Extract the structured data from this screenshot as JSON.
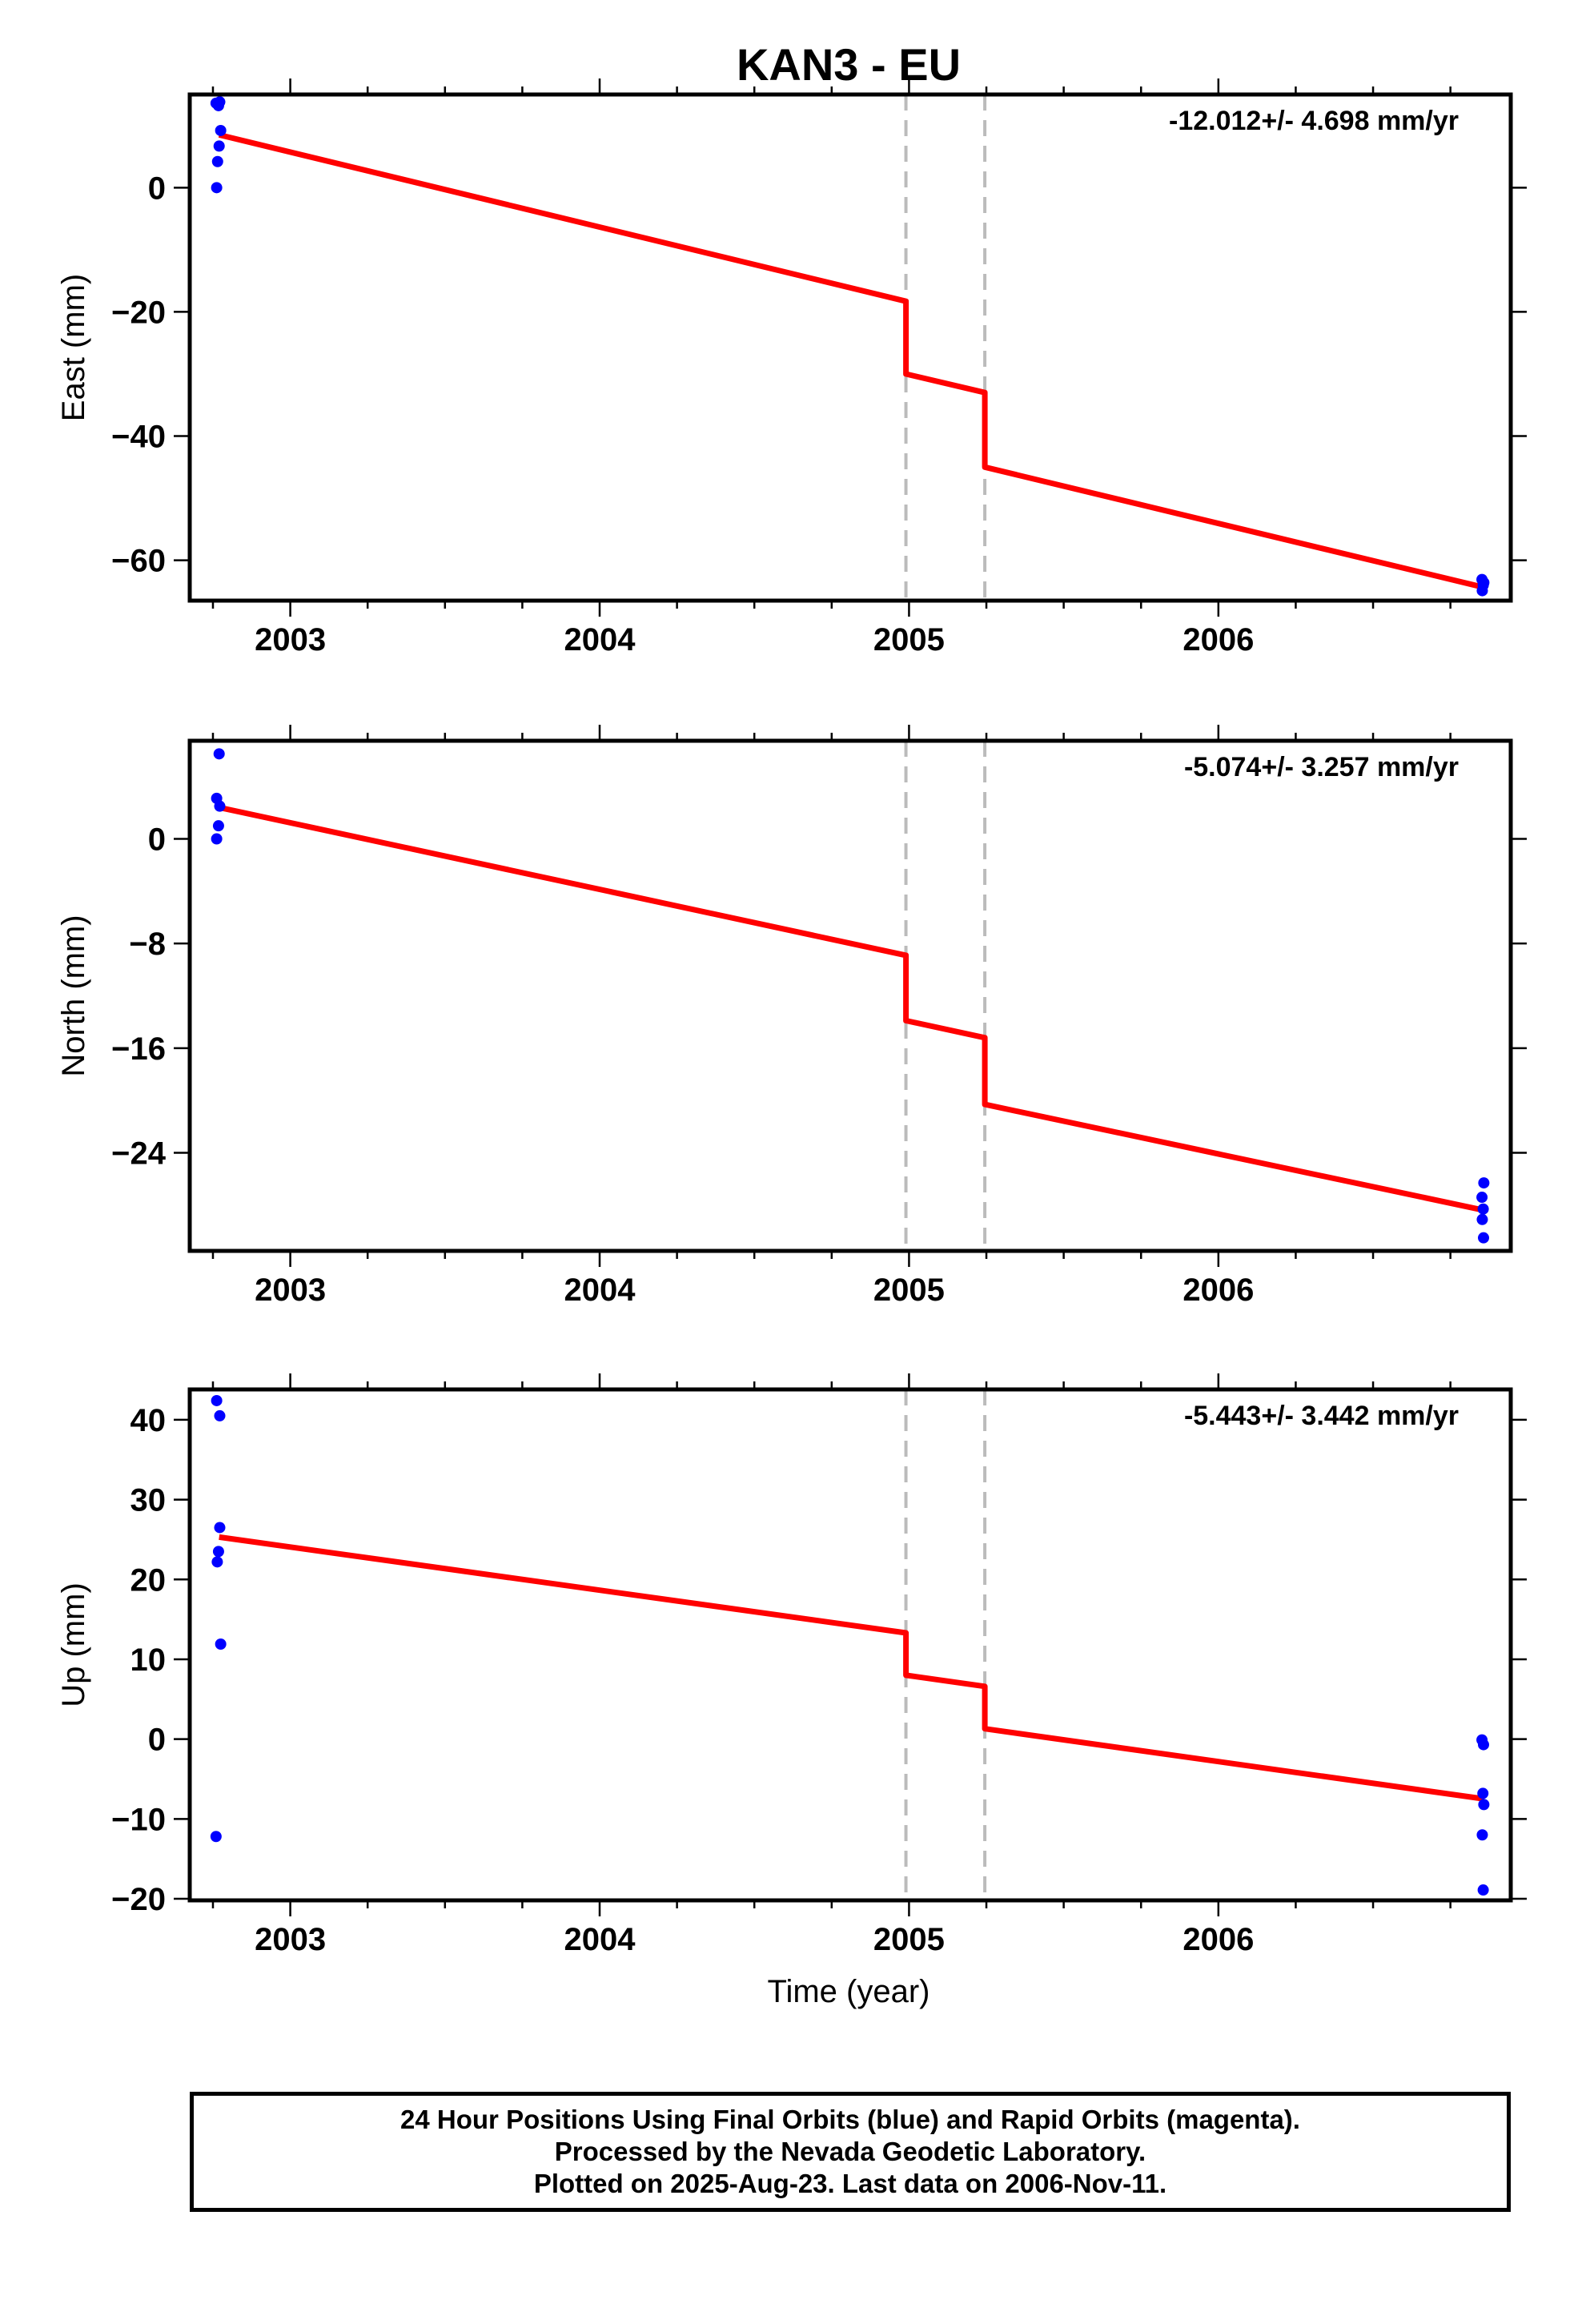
{
  "title": "KAN3 - EU",
  "xlabel": "Time (year)",
  "caption": [
    "24 Hour Positions Using Final Orbits (blue) and Rapid Orbits (magenta).",
    "Processed by the Nevada Geodetic Laboratory.",
    "Plotted on 2025-Aug-23. Last data on 2006-Nov-11."
  ],
  "colors": {
    "final_orbits": "#0000ff",
    "model": "#ff0000",
    "event_lines": "#bbbbbb"
  },
  "chart_data": [
    {
      "type": "scatter",
      "component": "East",
      "ylabel": "East (mm)",
      "rate": "-12.012+/- 4.698 mm/yr",
      "xlim": [
        2002.675,
        2006.945
      ],
      "ylim": [
        -66.5,
        15
      ],
      "xticks": [
        2003,
        2004,
        2005,
        2006
      ],
      "xtick_labels": [
        "2003",
        "2004",
        "2005",
        "2006"
      ],
      "yticks": [
        0,
        -20,
        -40,
        -60
      ],
      "ytick_labels": [
        "0",
        "−20",
        "−40",
        "−60"
      ],
      "event_lines": [
        2004.99,
        2005.245
      ],
      "points": [
        {
          "x": 2002.76,
          "y": 13.6
        },
        {
          "x": 2002.768,
          "y": 13.2
        },
        {
          "x": 2002.772,
          "y": 13.8
        },
        {
          "x": 2002.775,
          "y": 9.2
        },
        {
          "x": 2002.77,
          "y": 6.7
        },
        {
          "x": 2002.765,
          "y": 4.2
        },
        {
          "x": 2002.762,
          "y": 0.0
        },
        {
          "x": 2006.852,
          "y": -63.1
        },
        {
          "x": 2006.856,
          "y": -64.0
        },
        {
          "x": 2006.853,
          "y": -64.9
        },
        {
          "x": 2006.858,
          "y": -63.6
        }
      ],
      "model": [
        {
          "x": 2002.77,
          "y": 8.5
        },
        {
          "x": 2004.99,
          "y": -18.3
        },
        {
          "x": 2004.99,
          "y": -30.0
        },
        {
          "x": 2005.245,
          "y": -33.0
        },
        {
          "x": 2005.245,
          "y": -45.0
        },
        {
          "x": 2006.86,
          "y": -64.4
        }
      ]
    },
    {
      "type": "scatter",
      "component": "North",
      "ylabel": "North (mm)",
      "rate": "-5.074+/- 3.257 mm/yr",
      "xlim": [
        2002.675,
        2006.945
      ],
      "ylim": [
        -31.5,
        7.5
      ],
      "xticks": [
        2003,
        2004,
        2005,
        2006
      ],
      "xtick_labels": [
        "2003",
        "2004",
        "2005",
        "2006"
      ],
      "yticks": [
        0,
        -8,
        -16,
        -24
      ],
      "ytick_labels": [
        "0",
        "−8",
        "−16",
        "−24"
      ],
      "event_lines": [
        2004.99,
        2005.245
      ],
      "points": [
        {
          "x": 2002.77,
          "y": 6.5
        },
        {
          "x": 2002.762,
          "y": 3.1
        },
        {
          "x": 2002.772,
          "y": 2.5
        },
        {
          "x": 2002.768,
          "y": 1.0
        },
        {
          "x": 2002.762,
          "y": 0.0
        },
        {
          "x": 2006.858,
          "y": -26.3
        },
        {
          "x": 2006.852,
          "y": -27.4
        },
        {
          "x": 2006.856,
          "y": -28.3
        },
        {
          "x": 2006.853,
          "y": -29.1
        },
        {
          "x": 2006.857,
          "y": -30.5
        }
      ],
      "model": [
        {
          "x": 2002.77,
          "y": 2.4
        },
        {
          "x": 2004.99,
          "y": -8.9
        },
        {
          "x": 2004.99,
          "y": -13.9
        },
        {
          "x": 2005.245,
          "y": -15.2
        },
        {
          "x": 2005.245,
          "y": -20.3
        },
        {
          "x": 2006.86,
          "y": -28.4
        }
      ]
    },
    {
      "type": "scatter",
      "component": "Up",
      "ylabel": "Up (mm)",
      "rate": "-5.443+/- 3.442 mm/yr",
      "xlim": [
        2002.675,
        2006.945
      ],
      "ylim": [
        -20.2,
        43.8
      ],
      "xticks": [
        2003,
        2004,
        2005,
        2006
      ],
      "xtick_labels": [
        "2003",
        "2004",
        "2005",
        "2006"
      ],
      "yticks": [
        40,
        30,
        20,
        10,
        0,
        -10,
        -20
      ],
      "ytick_labels": [
        "40",
        "30",
        "20",
        "10",
        "0",
        "−10",
        "−20"
      ],
      "event_lines": [
        2004.99,
        2005.245
      ],
      "points": [
        {
          "x": 2002.762,
          "y": 42.4
        },
        {
          "x": 2002.772,
          "y": 40.5
        },
        {
          "x": 2002.772,
          "y": 26.5
        },
        {
          "x": 2002.768,
          "y": 23.5
        },
        {
          "x": 2002.764,
          "y": 22.2
        },
        {
          "x": 2002.775,
          "y": 11.9
        },
        {
          "x": 2002.76,
          "y": -12.2
        },
        {
          "x": 2006.852,
          "y": -0.1
        },
        {
          "x": 2006.857,
          "y": -0.7
        },
        {
          "x": 2006.855,
          "y": -6.8
        },
        {
          "x": 2006.858,
          "y": -8.2
        },
        {
          "x": 2006.853,
          "y": -12.0
        },
        {
          "x": 2006.856,
          "y": -18.9
        }
      ],
      "model": [
        {
          "x": 2002.77,
          "y": 25.3
        },
        {
          "x": 2004.99,
          "y": 13.3
        },
        {
          "x": 2004.99,
          "y": 8.0
        },
        {
          "x": 2005.245,
          "y": 6.6
        },
        {
          "x": 2005.245,
          "y": 1.3
        },
        {
          "x": 2006.86,
          "y": -7.5
        }
      ]
    }
  ]
}
